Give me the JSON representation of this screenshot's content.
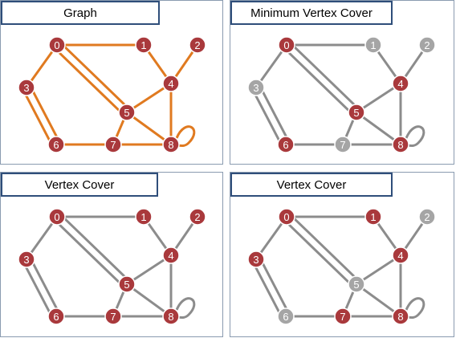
{
  "colors": {
    "node_red": "#a9393c",
    "node_gray": "#a5a5a5",
    "node_stroke": "#ffffff",
    "edge_orange": "#e07a20",
    "edge_gray": "#8c8c8c"
  },
  "nodes": [
    "0",
    "1",
    "2",
    "3",
    "4",
    "5",
    "6",
    "7",
    "8"
  ],
  "edges": [
    [
      0,
      1
    ],
    [
      0,
      3
    ],
    [
      0,
      5
    ],
    [
      0,
      5,
      "b"
    ],
    [
      1,
      4
    ],
    [
      2,
      4
    ],
    [
      4,
      5
    ],
    [
      4,
      8
    ],
    [
      3,
      6
    ],
    [
      3,
      6,
      "b"
    ],
    [
      5,
      7
    ],
    [
      5,
      8
    ],
    [
      6,
      7
    ],
    [
      7,
      8
    ],
    [
      8,
      8
    ]
  ],
  "panels": [
    {
      "title": "Graph",
      "edge_color": "edge_orange",
      "selected": [
        0,
        1,
        2,
        3,
        4,
        5,
        6,
        7,
        8
      ]
    },
    {
      "title": "Minimum Vertex Cover",
      "edge_color": "edge_gray",
      "selected": [
        0,
        4,
        5,
        6,
        8
      ]
    },
    {
      "title": "Vertex Cover",
      "edge_color": "edge_gray",
      "selected": [
        0,
        1,
        2,
        3,
        4,
        5,
        6,
        7,
        8
      ]
    },
    {
      "title": "Vertex Cover",
      "edge_color": "edge_gray",
      "selected": [
        0,
        1,
        3,
        4,
        7,
        8
      ]
    }
  ]
}
